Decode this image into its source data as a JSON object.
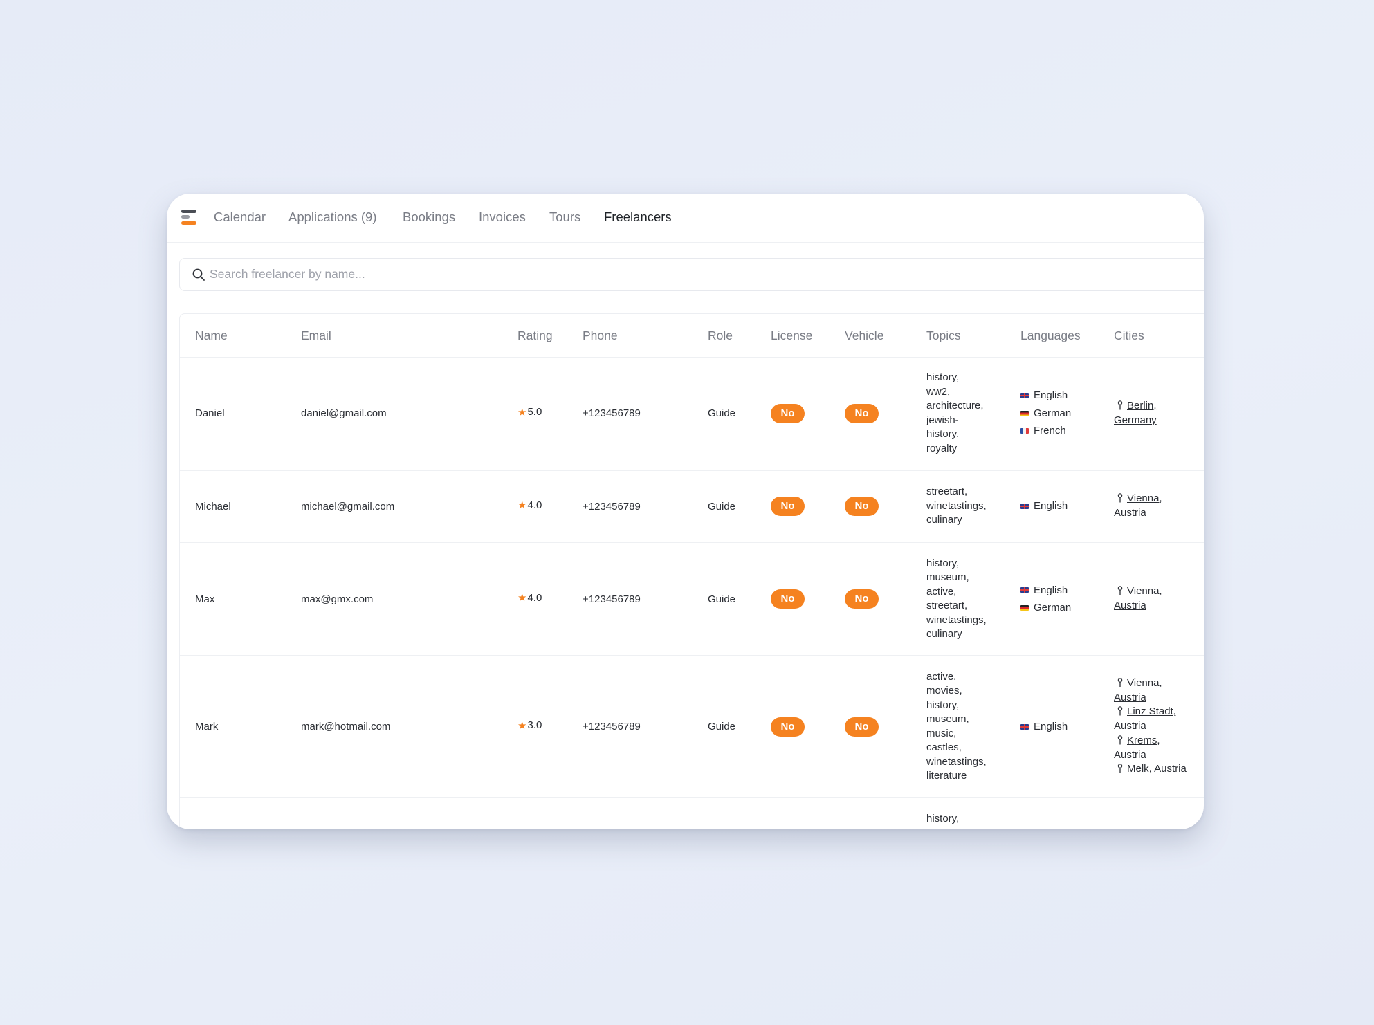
{
  "nav": {
    "logo": "app-logo",
    "items": [
      {
        "label": "Calendar",
        "active": false
      },
      {
        "label": "Applications (9)",
        "active": false
      },
      {
        "label": "Bookings",
        "active": false
      },
      {
        "label": "Invoices",
        "active": false
      },
      {
        "label": "Tours",
        "active": false
      },
      {
        "label": "Freelancers",
        "active": true
      }
    ]
  },
  "search": {
    "icon": "search-icon",
    "placeholder": "Search freelancer by name...",
    "value": ""
  },
  "table": {
    "columns": [
      "Name",
      "Email",
      "Rating",
      "Phone",
      "Role",
      "License",
      "Vehicle",
      "Topics",
      "Languages",
      "Cities"
    ],
    "rows": [
      {
        "name": "Daniel",
        "email": "daniel@gmail.com",
        "rating": "5.0",
        "phone": "+123456789",
        "role": "Guide",
        "license": "No",
        "vehicle": "No",
        "topics": [
          "history,",
          "ww2,",
          "architecture,",
          "jewish-",
          "history,",
          "royalty"
        ],
        "languages": [
          "English",
          "German",
          "French"
        ],
        "cities": [
          {
            "city": "Berlin,",
            "country": "Germany"
          }
        ]
      },
      {
        "name": "Michael",
        "email": "michael@gmail.com",
        "rating": "4.0",
        "phone": "+123456789",
        "role": "Guide",
        "license": "No",
        "vehicle": "No",
        "topics": [
          "streetart,",
          "winetastings,",
          "culinary"
        ],
        "languages": [
          "English"
        ],
        "cities": [
          {
            "city": "Vienna,",
            "country": "Austria"
          }
        ]
      },
      {
        "name": "Max",
        "email": "max@gmx.com",
        "rating": "4.0",
        "phone": "+123456789",
        "role": "Guide",
        "license": "No",
        "vehicle": "No",
        "topics": [
          "history,",
          "museum,",
          "active,",
          "streetart,",
          "winetastings,",
          "culinary"
        ],
        "languages": [
          "English",
          "German"
        ],
        "cities": [
          {
            "city": "Vienna,",
            "country": "Austria"
          }
        ]
      },
      {
        "name": "Mark",
        "email": "mark@hotmail.com",
        "rating": "3.0",
        "phone": "+123456789",
        "role": "Guide",
        "license": "No",
        "vehicle": "No",
        "topics": [
          "active,",
          "movies,",
          "history,",
          "museum,",
          "music,",
          "castles,",
          "winetastings,",
          "literature"
        ],
        "languages": [
          "English"
        ],
        "cities": [
          {
            "city": "Vienna,",
            "country": "Austria"
          },
          {
            "city": "Linz Stadt,",
            "country": "Austria"
          },
          {
            "city": "Krems,",
            "country": "Austria"
          },
          {
            "city": "Melk, Austria",
            "country": ""
          }
        ]
      },
      {
        "name": "",
        "email": "",
        "rating": "",
        "phone": "",
        "role": "",
        "license": "",
        "vehicle": "",
        "topics": [
          "history,"
        ],
        "languages": [],
        "cities": []
      }
    ]
  },
  "colors": {
    "accent": "#f58220",
    "text": "#1f2328",
    "muted": "#7a7d86",
    "background": "#e8edf8"
  }
}
